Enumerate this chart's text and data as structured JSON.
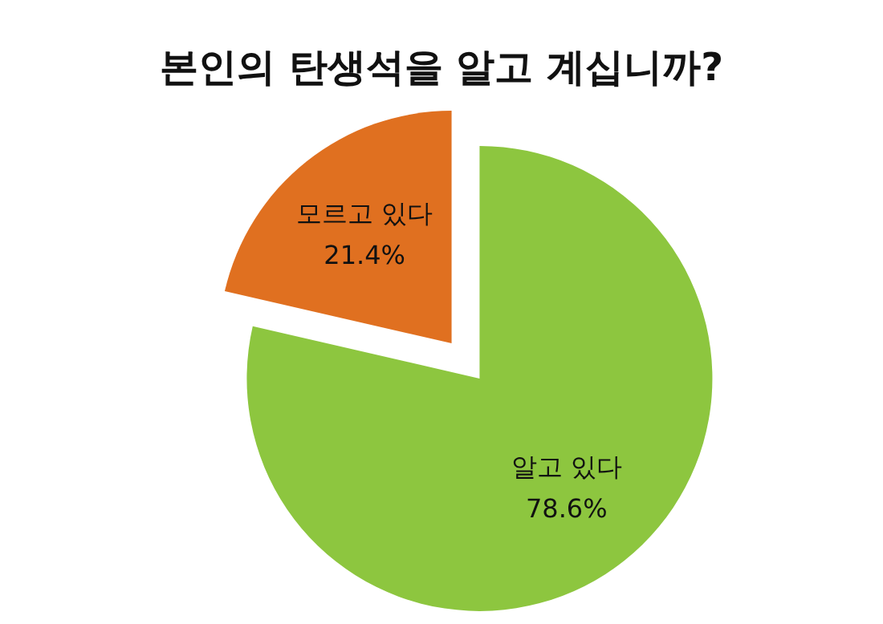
{
  "chart_data": {
    "type": "pie",
    "title": "본인의 탄생석을 알고 계십니까?",
    "categories": [
      "알고 있다",
      "모르고 있다"
    ],
    "values": [
      78.6,
      21.4
    ],
    "value_labels": [
      "78.6%",
      "21.4%"
    ],
    "colors": [
      "#8dc63f",
      "#e07020"
    ],
    "legend": false
  }
}
